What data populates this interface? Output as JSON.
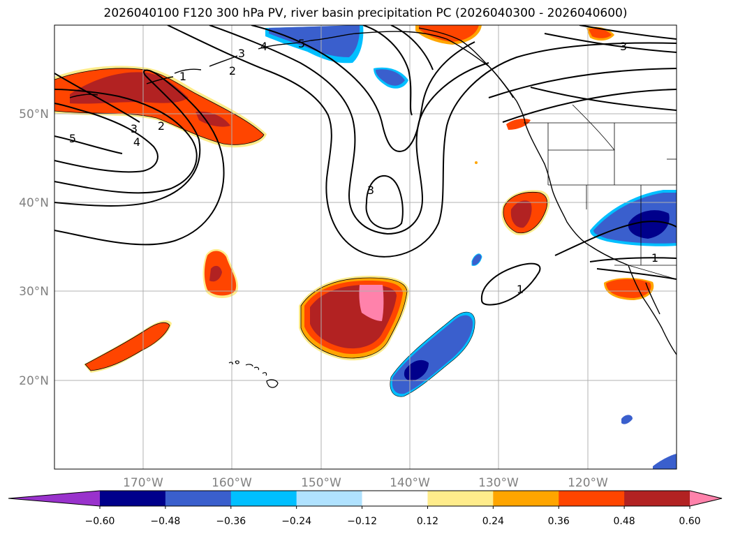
{
  "title": "2026040100 F120 300 hPa PV, river basin precipitation PC (2026040300 - 2026040600)",
  "map": {
    "projection": "plate-carree",
    "lon_range": [
      -180,
      -110
    ],
    "lat_range": [
      10,
      60
    ],
    "gridlines": true,
    "lat_ticks": [
      {
        "lat": 50,
        "label": "50°N"
      },
      {
        "lat": 40,
        "label": "40°N"
      },
      {
        "lat": 30,
        "label": "30°N"
      },
      {
        "lat": 20,
        "label": "20°N"
      }
    ],
    "lon_ticks": [
      {
        "lon": -170,
        "label": "170°W"
      },
      {
        "lon": -160,
        "label": "160°W"
      },
      {
        "lon": -150,
        "label": "150°W"
      },
      {
        "lon": -140,
        "label": "140°W"
      },
      {
        "lon": -130,
        "label": "130°W"
      },
      {
        "lon": -120,
        "label": "120°W"
      }
    ],
    "pv_contour_labels": [
      "1",
      "2",
      "3",
      "4",
      "5"
    ]
  },
  "colorbar": {
    "levels": [
      "−0.60",
      "−0.48",
      "−0.36",
      "−0.24",
      "−0.12",
      "0.12",
      "0.24",
      "0.36",
      "0.48",
      "0.60"
    ],
    "colors": [
      "#9932cc",
      "#00008b",
      "#3a5fcd",
      "#00bfff",
      "#b0e2ff",
      "#ffffff",
      "#ffec8b",
      "#ffa500",
      "#ff4500",
      "#b22222",
      "#ff82ab"
    ],
    "extend": "both"
  },
  "colors": {
    "coastline": "#000000",
    "grid": "#b0b0b0",
    "contour": "#000000"
  }
}
